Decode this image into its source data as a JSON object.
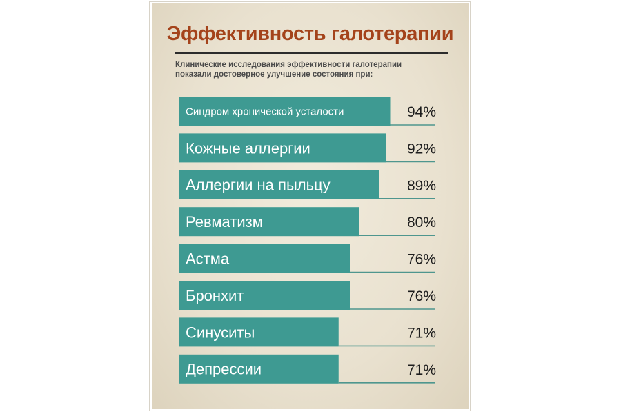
{
  "title": "Эффективность галотерапии",
  "subtitle_lines": [
    "Клинические исследования эффективности галотерапии",
    "показали достоверное улучшение состояния при:"
  ],
  "colors": {
    "bar": "#3e9a92",
    "title": "#a4431b",
    "divider": "#4e968e",
    "value_text": "#1e1e1e",
    "label_text": "#ffffff",
    "background": "#ece4d3"
  },
  "chart_data": {
    "type": "bar",
    "orientation": "horizontal",
    "categories": [
      "Синдром хронической усталости",
      "Кожные аллергии",
      "Аллергии на пыльцу",
      "Ревматизм",
      "Астма",
      "Бронхит",
      "Синуситы",
      "Депрессии"
    ],
    "values": [
      94,
      92,
      89,
      80,
      76,
      76,
      71,
      71
    ],
    "value_labels": [
      "94%",
      "92%",
      "89%",
      "80%",
      "76%",
      "76%",
      "71%",
      "71%"
    ],
    "xlim": [
      0,
      100
    ],
    "grid": false,
    "legend": "none"
  }
}
